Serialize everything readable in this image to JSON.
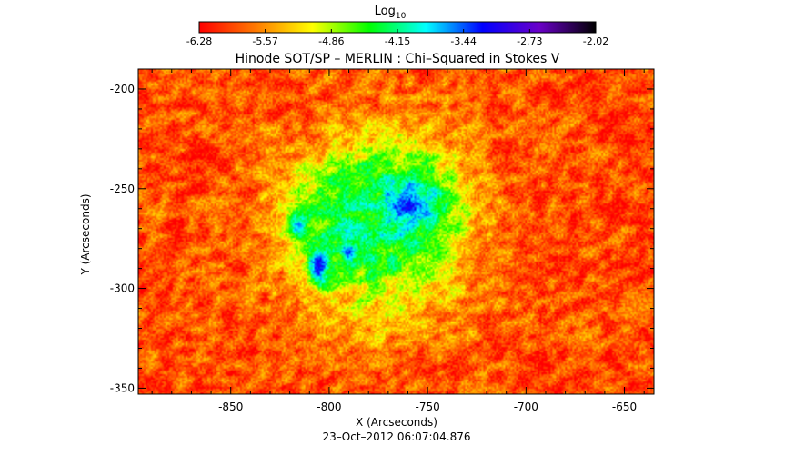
{
  "chart_data": {
    "type": "heatmap",
    "title": "Hinode SOT/SP – MERLIN : Chi–Squared in Stokes V",
    "xlabel": "X (Arcseconds)",
    "ylabel": "Y (Arcseconds)",
    "xlim": [
      -897,
      -635
    ],
    "ylim": [
      -353,
      -190
    ],
    "x_ticks": [
      -850,
      -800,
      -750,
      -700,
      -650
    ],
    "y_ticks": [
      -200,
      -250,
      -300,
      -350
    ],
    "footer": "23–Oct–2012 06:07:04.876",
    "colorbar": {
      "label_base": "Log",
      "label_sub": "10",
      "min": -6.28,
      "max": -2.02,
      "tick_labels": [
        "-6.28",
        "-5.57",
        "-4.86",
        "-4.15",
        "-3.44",
        "-2.73",
        "-2.02"
      ],
      "colors": [
        "#ff0000",
        "#ff7a00",
        "#ffff00",
        "#00ff00",
        "#00ffff",
        "#0000ff",
        "#6a00c8",
        "#000000"
      ]
    },
    "background_level": -5.9,
    "regions": [
      {
        "x": -775,
        "y": -270,
        "rx": 55,
        "ry": 58,
        "level": -4.45
      },
      {
        "x": -790,
        "y": -260,
        "rx": 35,
        "ry": 30,
        "level": -4.3
      },
      {
        "x": -760,
        "y": -258,
        "rx": 30,
        "ry": 28,
        "level": -4.1
      },
      {
        "x": -758,
        "y": -258,
        "rx": 14,
        "ry": 12,
        "level": -3.35
      },
      {
        "x": -805,
        "y": -288,
        "rx": 7,
        "ry": 14,
        "level": -3.25
      },
      {
        "x": -790,
        "y": -282,
        "rx": 5,
        "ry": 8,
        "level": -3.4
      },
      {
        "x": -815,
        "y": -268,
        "rx": 6,
        "ry": 7,
        "level": -3.5
      }
    ]
  }
}
